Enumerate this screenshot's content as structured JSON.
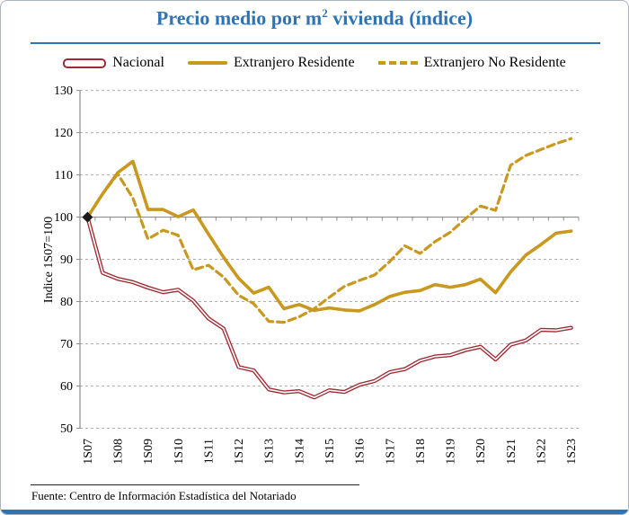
{
  "title": {
    "prefix": "Precio medio por m",
    "sup": "2",
    "suffix": " vivienda (índice)"
  },
  "legend": [
    {
      "label": "Nacional",
      "style": "red-outline-line"
    },
    {
      "label": "Extranjero Residente",
      "style": "gold-solid-line"
    },
    {
      "label": "Extranjero No Residente",
      "style": "gold-dashed-line"
    }
  ],
  "footer": "Fuente: Centro de Información Estadística del Notariado",
  "colors": {
    "title_blue": "#2E74B5",
    "nacional_red": "#9E2B33",
    "extranjero_gold": "#C8981F",
    "gridline_gray": "#ADADAD",
    "axis_gray": "#8C8C8C",
    "marker_black": "#1A1A1A"
  },
  "chart_data": {
    "type": "line",
    "title": "Precio medio por m2 vivienda (índice)",
    "ylabel": "Indice 1S07=100",
    "xlabel": "",
    "ylim": [
      50,
      130
    ],
    "ytick_step": 10,
    "grid": "horizontal-dashed",
    "x_axis_crosses_at": 100,
    "legend_position": "top",
    "start_marker": {
      "category": "1S07",
      "value": 100,
      "shape": "diamond"
    },
    "categories": [
      "1S07",
      "2S07",
      "1S08",
      "2S08",
      "1S09",
      "2S09",
      "1S10",
      "2S10",
      "1S11",
      "2S11",
      "1S12",
      "2S12",
      "1S13",
      "2S13",
      "1S14",
      "2S14",
      "1S15",
      "2S15",
      "1S16",
      "2S16",
      "1S17",
      "2S17",
      "1S18",
      "2S18",
      "1S19",
      "2S19",
      "1S20",
      "2S20",
      "1S21",
      "2S21",
      "1S22",
      "2S22",
      "1S23"
    ],
    "x_labels_shown": [
      "1S07",
      "1S08",
      "1S09",
      "1S10",
      "1S11",
      "1S12",
      "1S13",
      "1S14",
      "1S15",
      "1S16",
      "1S17",
      "1S18",
      "1S19",
      "1S20",
      "1S21",
      "1S22",
      "1S23"
    ],
    "series": [
      {
        "name": "Nacional",
        "style": "double-line",
        "color": "#9E2B33",
        "values": [
          100,
          86.8,
          85.4,
          84.6,
          83.3,
          82.2,
          82.8,
          80.2,
          76.0,
          73.6,
          64.5,
          63.7,
          59.2,
          58.5,
          58.8,
          57.3,
          59.0,
          58.6,
          60.3,
          61.2,
          63.3,
          64.0,
          66.0,
          67.0,
          67.3,
          68.5,
          69.3,
          66.3,
          69.8,
          70.8,
          73.3,
          73.2,
          73.8
        ]
      },
      {
        "name": "Extranjero Residente",
        "style": "solid",
        "color": "#C8981F",
        "values": [
          100,
          105.5,
          110.5,
          113.2,
          101.8,
          101.8,
          100.1,
          101.7,
          96.0,
          90.5,
          85.5,
          82.0,
          83.4,
          78.3,
          79.3,
          77.9,
          78.5,
          78.0,
          77.8,
          79.3,
          81.2,
          82.2,
          82.6,
          84.0,
          83.4,
          84.0,
          85.3,
          82.1,
          87.0,
          91.0,
          93.5,
          96.2,
          96.7
        ]
      },
      {
        "name": "Extranjero No Residente",
        "style": "dashed",
        "color": "#C8981F",
        "values": [
          100,
          105.5,
          110.2,
          104.5,
          94.8,
          96.9,
          95.7,
          87.5,
          88.6,
          85.8,
          81.5,
          79.5,
          75.3,
          75.1,
          76.4,
          78.3,
          81.0,
          83.6,
          85.0,
          86.3,
          89.5,
          93.2,
          91.4,
          94.2,
          96.4,
          99.6,
          102.6,
          101.6,
          112.3,
          114.6,
          116.0,
          117.4,
          118.6
        ]
      }
    ]
  }
}
